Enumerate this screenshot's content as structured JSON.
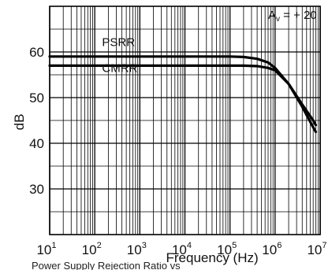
{
  "chart_data": {
    "type": "line",
    "title": "",
    "xlabel": "Frequency (Hz)",
    "ylabel": "dB",
    "x_scale": "log",
    "xlim": [
      10,
      10000000
    ],
    "ylim": [
      20,
      70
    ],
    "grid": true,
    "x_ticks": [
      {
        "base": "10",
        "exp": "1",
        "value": 10
      },
      {
        "base": "10",
        "exp": "2",
        "value": 100
      },
      {
        "base": "10",
        "exp": "3",
        "value": 1000
      },
      {
        "base": "10",
        "exp": "4",
        "value": 10000
      },
      {
        "base": "10",
        "exp": "5",
        "value": 100000
      },
      {
        "base": "10",
        "exp": "6",
        "value": 1000000
      },
      {
        "base": "10",
        "exp": "7",
        "value": 10000000
      }
    ],
    "y_ticks": [
      {
        "label": "30",
        "value": 30
      },
      {
        "label": "40",
        "value": 40
      },
      {
        "label": "50",
        "value": 50
      },
      {
        "label": "60",
        "value": 60
      }
    ],
    "annotation": {
      "main": "A",
      "sub": "v",
      "rest": " = + 20"
    },
    "series": [
      {
        "name": "PSRR",
        "x": [
          10,
          1000,
          100000,
          200000,
          400000,
          700000,
          1000000,
          2000000,
          4000000,
          7000000,
          8000000
        ],
        "y": [
          59,
          59,
          59,
          58.9,
          58.5,
          57.7,
          56.5,
          53,
          48.5,
          45,
          44
        ]
      },
      {
        "name": "CMRR",
        "x": [
          10,
          1000,
          100000,
          200000,
          400000,
          700000,
          1000000,
          2000000,
          4000000,
          7000000,
          8000000
        ],
        "y": [
          57,
          57,
          57,
          57,
          56.9,
          56.5,
          56,
          53,
          48,
          43.5,
          42.5
        ]
      }
    ],
    "series_label_points": [
      {
        "x": 200,
        "y": 61.3
      },
      {
        "x": 200,
        "y": 55.6
      }
    ]
  },
  "footer_fragment": "Power Supply Rejection Ratio vs Frequency"
}
